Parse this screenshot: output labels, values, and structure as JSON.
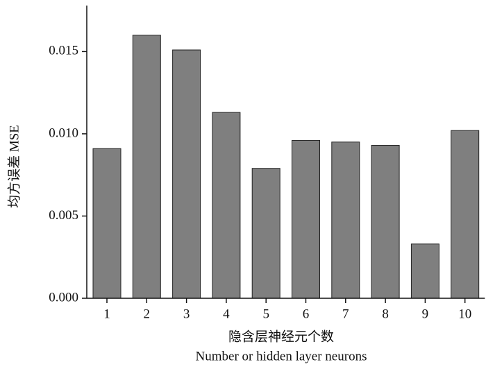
{
  "chart_data": {
    "type": "bar",
    "y_label": "均方误差 MSE",
    "x_label": "隐含层神经元个数",
    "x_label_en": "Number or hidden layer neurons",
    "categories": [
      "1",
      "2",
      "3",
      "4",
      "5",
      "6",
      "7",
      "8",
      "9",
      "10"
    ],
    "values": [
      0.0091,
      0.016,
      0.0151,
      0.0113,
      0.0079,
      0.0096,
      0.0095,
      0.0093,
      0.0033,
      0.0102
    ],
    "color": "#7f7f7f",
    "ylim": [
      0,
      0.0178
    ],
    "yticks": [
      {
        "value": 0,
        "label": "0.000"
      },
      {
        "value": 0.005,
        "label": "0.005"
      },
      {
        "value": 0.01,
        "label": "0.010"
      },
      {
        "value": 0.015,
        "label": "0.015"
      }
    ],
    "grid": false
  }
}
